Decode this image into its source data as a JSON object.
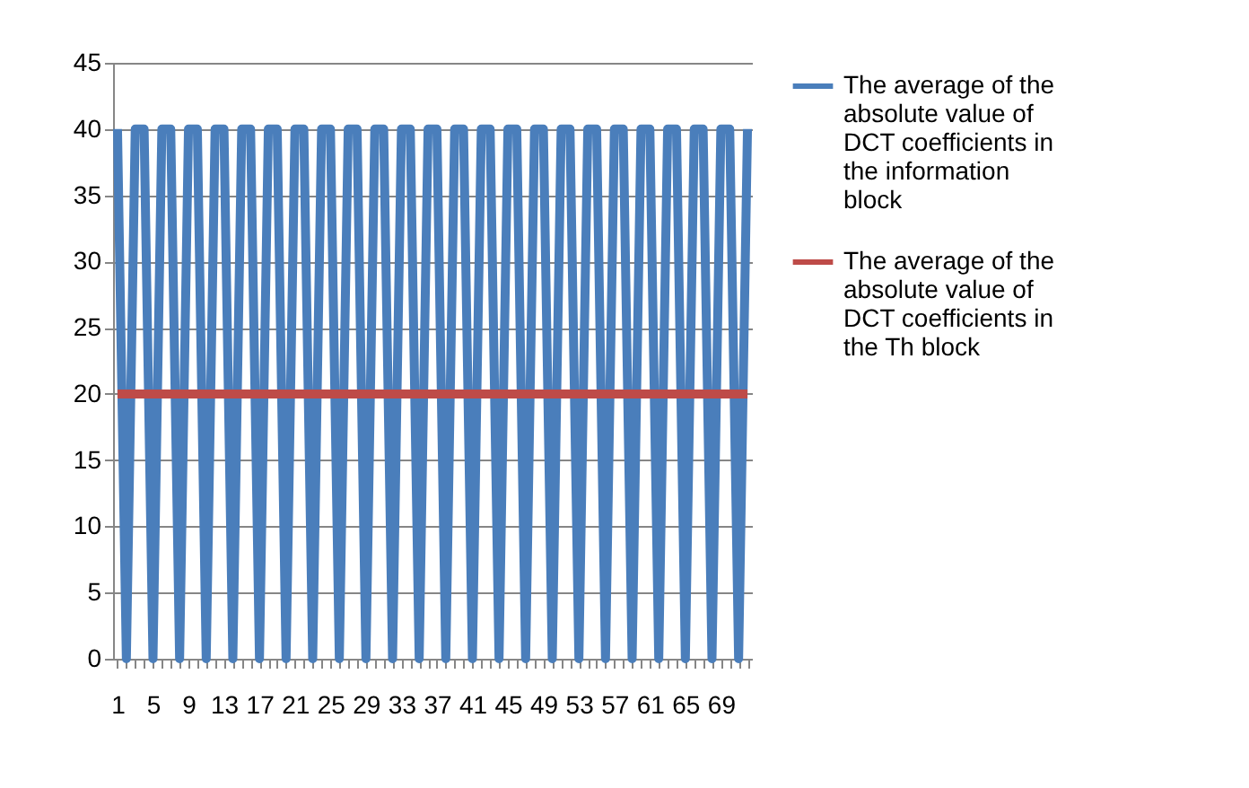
{
  "chart_data": {
    "type": "line",
    "categories": [
      "1",
      null,
      null,
      null,
      "5",
      null,
      null,
      null,
      "9",
      null,
      null,
      null,
      "13",
      null,
      null,
      null,
      "17",
      null,
      null,
      null,
      "21",
      null,
      null,
      null,
      "25",
      null,
      null,
      null,
      "29",
      null,
      null,
      null,
      "33",
      null,
      null,
      null,
      "37",
      null,
      null,
      null,
      "41",
      null,
      null,
      null,
      "45",
      null,
      null,
      null,
      "49",
      null,
      null,
      null,
      "53",
      null,
      null,
      null,
      "57",
      null,
      null,
      null,
      "61",
      null,
      null,
      null,
      "65",
      null,
      null,
      null,
      "69",
      null,
      null,
      null
    ],
    "series": [
      {
        "name": "The average of the absolute value of DCT coefficients in the information block",
        "color": "#4a7ebb",
        "values": [
          40,
          0,
          40,
          40,
          0,
          40,
          40,
          0,
          40,
          40,
          0,
          40,
          40,
          0,
          40,
          40,
          0,
          40,
          40,
          0,
          40,
          40,
          0,
          40,
          40,
          0,
          40,
          40,
          0,
          40,
          40,
          0,
          40,
          40,
          0,
          40,
          40,
          0,
          40,
          40,
          0,
          40,
          40,
          0,
          40,
          40,
          0,
          40,
          40,
          0,
          40,
          40,
          0,
          40,
          40,
          0,
          40,
          40,
          0,
          40,
          40,
          0,
          40,
          40,
          0,
          40,
          40,
          0,
          40,
          40,
          0,
          40
        ]
      },
      {
        "name": "The average of the absolute value of DCT coefficients in the Th block",
        "color": "#be4b48",
        "values": [
          20,
          20,
          20,
          20,
          20,
          20,
          20,
          20,
          20,
          20,
          20,
          20,
          20,
          20,
          20,
          20,
          20,
          20,
          20,
          20,
          20,
          20,
          20,
          20,
          20,
          20,
          20,
          20,
          20,
          20,
          20,
          20,
          20,
          20,
          20,
          20,
          20,
          20,
          20,
          20,
          20,
          20,
          20,
          20,
          20,
          20,
          20,
          20,
          20,
          20,
          20,
          20,
          20,
          20,
          20,
          20,
          20,
          20,
          20,
          20,
          20,
          20,
          20,
          20,
          20,
          20,
          20,
          20,
          20,
          20,
          20,
          20
        ]
      }
    ],
    "ylim": [
      0,
      45
    ],
    "yticks": [
      0,
      5,
      10,
      15,
      20,
      25,
      30,
      35,
      40,
      45
    ],
    "grid": "y",
    "legend": "right",
    "marker": "none",
    "line_style": "solid"
  }
}
